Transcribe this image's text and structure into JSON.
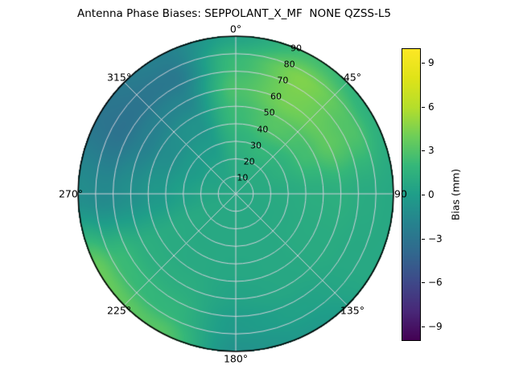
{
  "title": "Antenna Phase Biases: SEPPOLANT_X_MF  NONE QZSS-L5",
  "chart_data": {
    "type": "heatmap",
    "projection": "polar",
    "title": "Antenna Phase Biases: SEPPOLANT_X_MF  NONE QZSS-L5",
    "colormap": "viridis",
    "grid": true,
    "grid_color": "#d0d0da",
    "outline_color": "#000000",
    "colorbar": {
      "label": "Bias (mm)",
      "ticks": [
        -9,
        -6,
        -3,
        0,
        3,
        6,
        9
      ],
      "vmin": -10,
      "vmax": 10,
      "position": "right"
    },
    "angle_labels": [
      {
        "label": "0°",
        "deg": 0
      },
      {
        "label": "45°",
        "deg": 45
      },
      {
        "label": "90",
        "deg": 90
      },
      {
        "label": "135°",
        "deg": 135
      },
      {
        "label": "180°",
        "deg": 180
      },
      {
        "label": "225°",
        "deg": 225
      },
      {
        "label": "270°",
        "deg": 270
      },
      {
        "label": "315°",
        "deg": 315
      }
    ],
    "radial_ticks": [
      10,
      20,
      30,
      40,
      50,
      60,
      70,
      80,
      90
    ],
    "radial_tick_angle_deg": 22.5,
    "radial_max": 90,
    "azimuth_deg": [
      0,
      30,
      60,
      90,
      120,
      150,
      180,
      210,
      240,
      270,
      300,
      330
    ],
    "zenith_rings": [
      0,
      15,
      30,
      45,
      60,
      75,
      90
    ],
    "values": [
      [
        0.8,
        1.0,
        1.5,
        2.2,
        2.8,
        2.2,
        0.5
      ],
      [
        0.8,
        1.2,
        2.0,
        3.2,
        4.2,
        4.5,
        2.5
      ],
      [
        0.8,
        1.0,
        1.5,
        2.5,
        3.5,
        3.0,
        1.5
      ],
      [
        0.8,
        0.9,
        1.0,
        1.2,
        1.3,
        1.0,
        0.8
      ],
      [
        0.8,
        0.8,
        0.9,
        1.0,
        1.0,
        0.8,
        0.8
      ],
      [
        0.8,
        0.8,
        0.8,
        0.8,
        0.7,
        0.3,
        -0.3
      ],
      [
        0.8,
        0.8,
        0.8,
        0.7,
        0.4,
        -0.2,
        -0.8
      ],
      [
        0.8,
        0.8,
        0.8,
        0.9,
        1.2,
        1.8,
        3.2
      ],
      [
        0.8,
        0.8,
        0.9,
        1.0,
        1.3,
        2.2,
        3.8
      ],
      [
        0.8,
        0.6,
        0.2,
        -0.4,
        -1.0,
        -1.5,
        -1.2
      ],
      [
        0.8,
        0.4,
        -0.3,
        -1.2,
        -2.2,
        -3.2,
        -3.0
      ],
      [
        0.8,
        0.5,
        -0.2,
        -0.8,
        -1.8,
        -2.8,
        -2.2
      ]
    ],
    "colormap_stops": [
      [
        0.0,
        "#440154"
      ],
      [
        0.1,
        "#482878"
      ],
      [
        0.2,
        "#3e4989"
      ],
      [
        0.3,
        "#31688e"
      ],
      [
        0.4,
        "#26828e"
      ],
      [
        0.5,
        "#1f9e89"
      ],
      [
        0.6,
        "#35b779"
      ],
      [
        0.7,
        "#6ece58"
      ],
      [
        0.8,
        "#b5de2b"
      ],
      [
        0.9,
        "#dfe318"
      ],
      [
        1.0,
        "#fde725"
      ]
    ]
  }
}
